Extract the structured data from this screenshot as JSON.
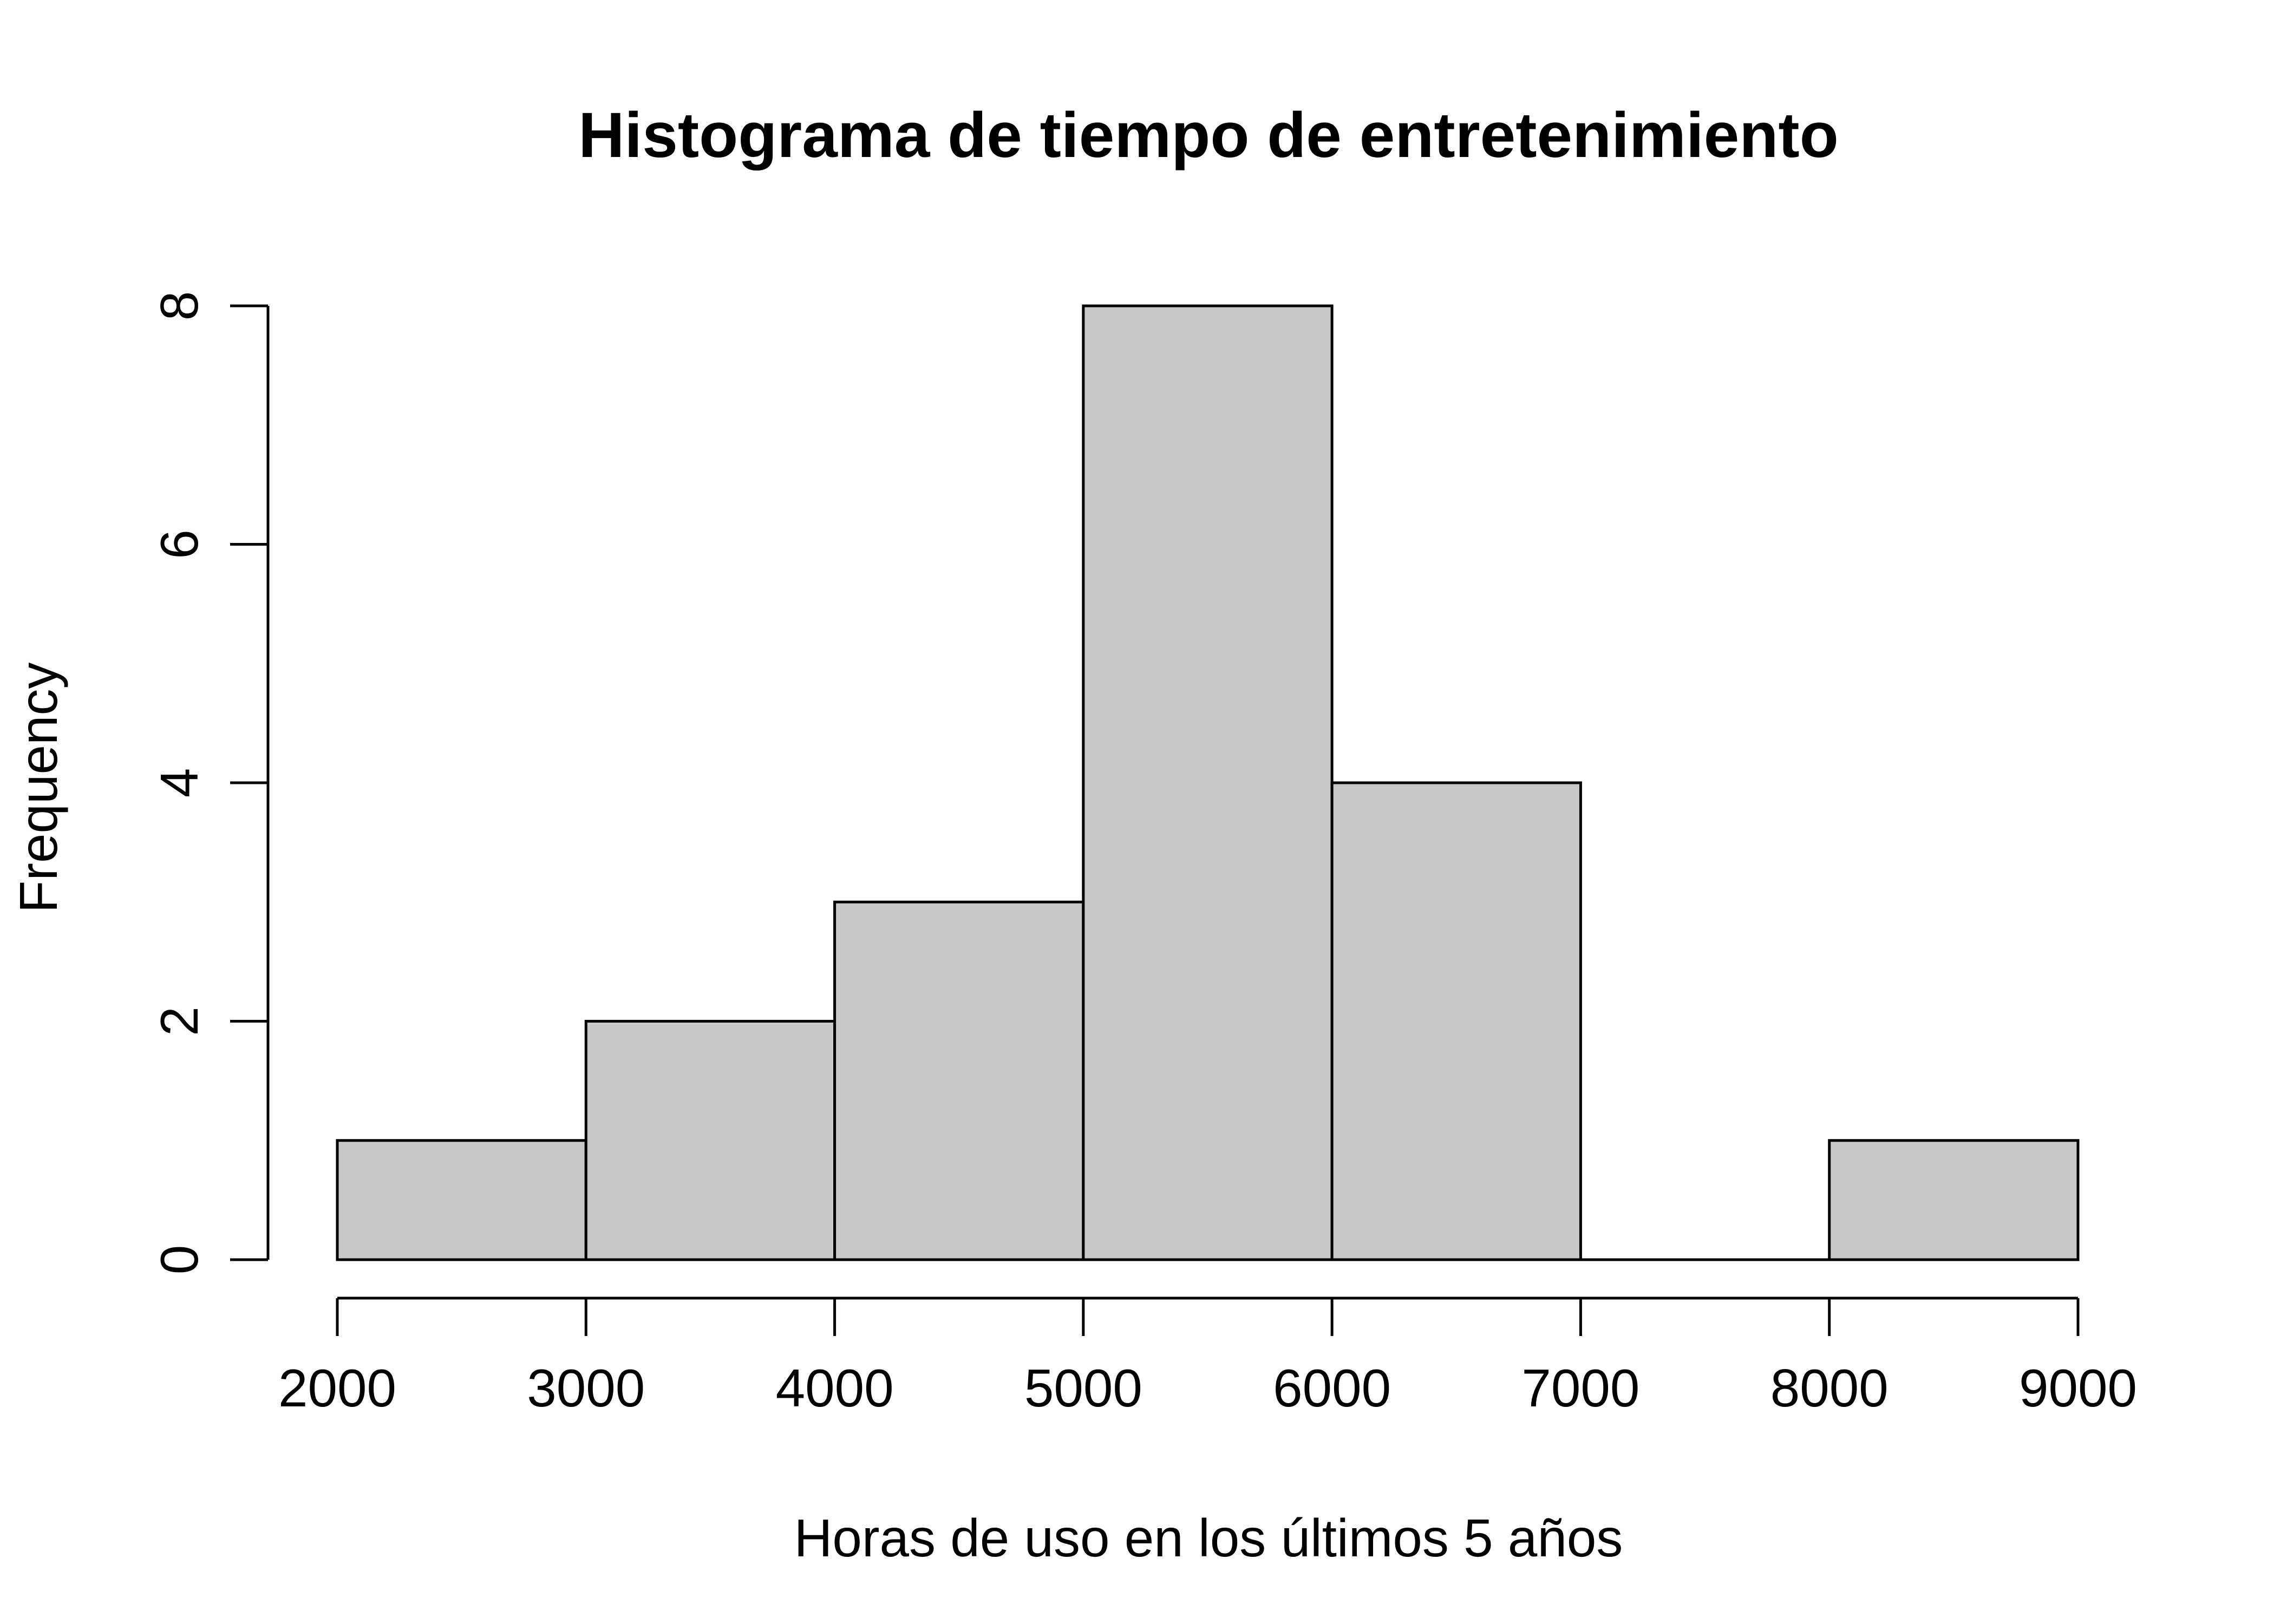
{
  "chart_data": {
    "type": "bar",
    "title": "Histograma de tiempo de entretenimiento",
    "xlabel": "Horas de uso en los últimos 5 años",
    "ylabel": "Frequency",
    "bins": [
      {
        "start": 2000,
        "end": 3000,
        "count": 1
      },
      {
        "start": 3000,
        "end": 4000,
        "count": 2
      },
      {
        "start": 4000,
        "end": 5000,
        "count": 3
      },
      {
        "start": 5000,
        "end": 6000,
        "count": 8
      },
      {
        "start": 6000,
        "end": 7000,
        "count": 4
      },
      {
        "start": 7000,
        "end": 8000,
        "count": 0
      },
      {
        "start": 8000,
        "end": 9000,
        "count": 1
      }
    ],
    "xlim": [
      2000,
      9000
    ],
    "ylim": [
      0,
      8
    ],
    "x_ticks": [
      "2000",
      "3000",
      "4000",
      "5000",
      "6000",
      "7000",
      "8000",
      "9000"
    ],
    "y_ticks": [
      "0",
      "2",
      "4",
      "6",
      "8"
    ],
    "grid": false,
    "bar_color": "#c8c8c8"
  }
}
